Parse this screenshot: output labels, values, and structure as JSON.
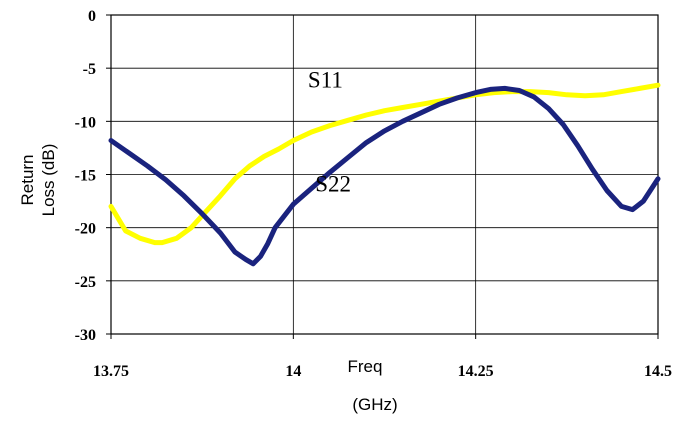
{
  "chart_data": {
    "type": "line",
    "title": "",
    "xlabel_lines": [
      "Freq",
      "(GHz)"
    ],
    "ylabel_lines": [
      "Return",
      "Loss (dB)"
    ],
    "xlim": [
      13.75,
      14.5
    ],
    "ylim": [
      -30,
      0
    ],
    "xticks": [
      13.75,
      14,
      14.25,
      14.5
    ],
    "xtick_labels": [
      "13.75",
      "14",
      "14.25",
      "14.5"
    ],
    "yticks": [
      0,
      -5,
      -10,
      -15,
      -20,
      -25,
      -30
    ],
    "ytick_labels": [
      "0",
      "-5",
      "-10",
      "-15",
      "-20",
      "-25",
      "-30"
    ],
    "grid": true,
    "series": [
      {
        "name": "S11",
        "color": "#ffff00",
        "x": [
          13.75,
          13.77,
          13.79,
          13.81,
          13.82,
          13.84,
          13.86,
          13.88,
          13.9,
          13.92,
          13.94,
          13.96,
          13.98,
          14.0,
          14.025,
          14.05,
          14.075,
          14.1,
          14.125,
          14.15,
          14.175,
          14.2,
          14.225,
          14.25,
          14.275,
          14.3,
          14.325,
          14.35,
          14.375,
          14.4,
          14.425,
          14.45,
          14.475,
          14.5
        ],
        "y": [
          -18.0,
          -20.3,
          -21.0,
          -21.4,
          -21.4,
          -21.0,
          -20.0,
          -18.5,
          -17.0,
          -15.4,
          -14.2,
          -13.3,
          -12.6,
          -11.8,
          -11.0,
          -10.4,
          -9.9,
          -9.4,
          -9.0,
          -8.7,
          -8.4,
          -8.1,
          -7.8,
          -7.5,
          -7.3,
          -7.2,
          -7.2,
          -7.3,
          -7.5,
          -7.6,
          -7.5,
          -7.2,
          -6.9,
          -6.6
        ]
      },
      {
        "name": "S22",
        "color": "#1a237e",
        "x": [
          13.75,
          13.775,
          13.8,
          13.825,
          13.85,
          13.875,
          13.9,
          13.92,
          13.935,
          13.945,
          13.955,
          13.965,
          13.975,
          14.0,
          14.025,
          14.05,
          14.075,
          14.1,
          14.125,
          14.15,
          14.175,
          14.2,
          14.225,
          14.25,
          14.27,
          14.29,
          14.31,
          14.33,
          14.35,
          14.37,
          14.39,
          14.41,
          14.43,
          14.45,
          14.465,
          14.48,
          14.5
        ],
        "y": [
          -11.8,
          -13.0,
          -14.2,
          -15.5,
          -17.0,
          -18.7,
          -20.5,
          -22.3,
          -23.0,
          -23.4,
          -22.7,
          -21.5,
          -20.0,
          -17.8,
          -16.3,
          -14.8,
          -13.4,
          -12.0,
          -10.9,
          -10.0,
          -9.2,
          -8.4,
          -7.8,
          -7.3,
          -7.0,
          -6.9,
          -7.1,
          -7.7,
          -8.8,
          -10.3,
          -12.3,
          -14.5,
          -16.5,
          -18.0,
          -18.3,
          -17.5,
          -15.4
        ]
      }
    ],
    "annotations": [
      {
        "text": "S11",
        "x": 14.02,
        "y": -6.8
      },
      {
        "text": "S22",
        "x": 14.03,
        "y": -16.6
      }
    ]
  }
}
